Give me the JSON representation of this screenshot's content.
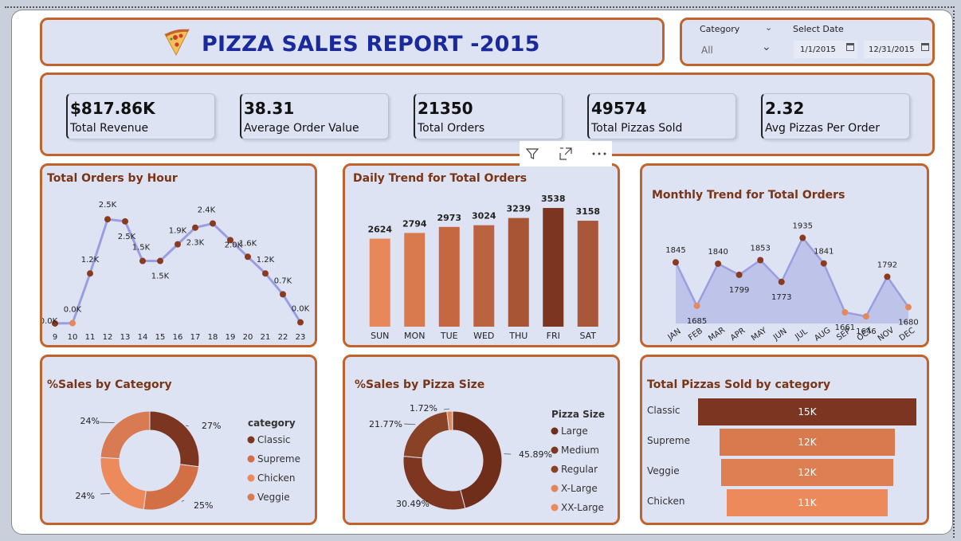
{
  "header": {
    "icon": "pizza-icon",
    "title": "PIZZA SALES REPORT -2015"
  },
  "filters": {
    "category_label": "Category",
    "category_value": "All",
    "date_label": "Select Date",
    "date_start": "1/1/2015",
    "date_end": "12/31/2015"
  },
  "kpis": [
    {
      "value": "$817.86K",
      "label": "Total Revenue"
    },
    {
      "value": "38.31",
      "label": "Average Order Value"
    },
    {
      "value": "21350",
      "label": "Total Orders"
    },
    {
      "value": "49574",
      "label": "Total Pizzas Sold"
    },
    {
      "value": "2.32",
      "label": "Avg Pizzas Per Order"
    }
  ],
  "colors": {
    "accent_border": "#c0632c",
    "card_bg": "#dde3f3",
    "title_blue": "#1b2a9a",
    "chart_title": "#7a3416",
    "line": "#9a9ee0",
    "area": "#b8bde8"
  },
  "chart_data": [
    {
      "id": "hourly",
      "type": "line",
      "title": "Total Orders by Hour",
      "x": [
        "9",
        "10",
        "11",
        "12",
        "13",
        "14",
        "15",
        "16",
        "17",
        "18",
        "19",
        "20",
        "21",
        "22",
        "23"
      ],
      "values": [
        0.001,
        0.008,
        1.2,
        2.5,
        2.45,
        1.5,
        1.5,
        1.9,
        2.3,
        2.4,
        2.0,
        1.6,
        1.2,
        0.7,
        0.028
      ],
      "labels": [
        "0.0K",
        "0.0K",
        "1.2K",
        "2.5K",
        "2.5K",
        "1.5K",
        "1.5K",
        "1.9K",
        "2.3K",
        "2.4K",
        "2.0K",
        "1.6K",
        "1.2K",
        "0.7K",
        "0.0K"
      ],
      "ylim": [
        0,
        2.6
      ]
    },
    {
      "id": "daily",
      "type": "bar",
      "title": "Daily Trend for Total Orders",
      "categories": [
        "SUN",
        "MON",
        "TUE",
        "WED",
        "THU",
        "FRI",
        "SAT"
      ],
      "values": [
        2624,
        2794,
        2973,
        3024,
        3239,
        3538,
        3158
      ],
      "colors": [
        "#e8885a",
        "#d97a4e",
        "#c56842",
        "#bb6240",
        "#a85535",
        "#7b3520",
        "#a85838"
      ],
      "ylim": [
        0,
        3800
      ]
    },
    {
      "id": "monthly",
      "type": "area",
      "title": "Monthly Trend for Total Orders",
      "categories": [
        "JAN",
        "FEB",
        "MAR",
        "APR",
        "MAY",
        "JUN",
        "JUL",
        "AUG",
        "SEP",
        "OCT",
        "NOV",
        "DEC"
      ],
      "values": [
        1845,
        1685,
        1840,
        1799,
        1853,
        1773,
        1935,
        1841,
        1661,
        1646,
        1792,
        1680
      ],
      "ylim": [
        1620,
        1960
      ]
    },
    {
      "id": "category",
      "type": "pie",
      "title": "%Sales by Category",
      "legend_title": "category",
      "series": [
        {
          "name": "Classic",
          "value": 27,
          "label": "27%",
          "color": "#7b3520"
        },
        {
          "name": "Supreme",
          "value": 25,
          "label": "25%",
          "color": "#d36f45"
        },
        {
          "name": "Chicken",
          "value": 24,
          "label": "24%",
          "color": "#ec8a5c"
        },
        {
          "name": "Veggie",
          "value": 24,
          "label": "24%",
          "color": "#d87a52"
        }
      ]
    },
    {
      "id": "size",
      "type": "pie",
      "title": "%Sales by Pizza Size",
      "legend_title": "Pizza Size",
      "series": [
        {
          "name": "Large",
          "value": 45.89,
          "label": "45.89%",
          "color": "#6e2e1a"
        },
        {
          "name": "Medium",
          "value": 30.49,
          "label": "30.49%",
          "color": "#7e3620"
        },
        {
          "name": "Regular",
          "value": 21.77,
          "label": "21.77%",
          "color": "#8a4226"
        },
        {
          "name": "X-Large",
          "value": 1.72,
          "label": "1.72%",
          "color": "#e3855a"
        },
        {
          "name": "XX-Large",
          "value": 0.13,
          "label": "",
          "color": "#ec8a5c"
        }
      ]
    },
    {
      "id": "funnel",
      "type": "bar",
      "title": "Total Pizzas Sold by category",
      "categories": [
        "Classic",
        "Supreme",
        "Veggie",
        "Chicken"
      ],
      "values": [
        15,
        12,
        12,
        11
      ],
      "labels": [
        "15K",
        "12K",
        "12K",
        "11K"
      ],
      "colors": [
        "#7b3520",
        "#d97a4e",
        "#dd7f52",
        "#ec8a5c"
      ]
    }
  ]
}
